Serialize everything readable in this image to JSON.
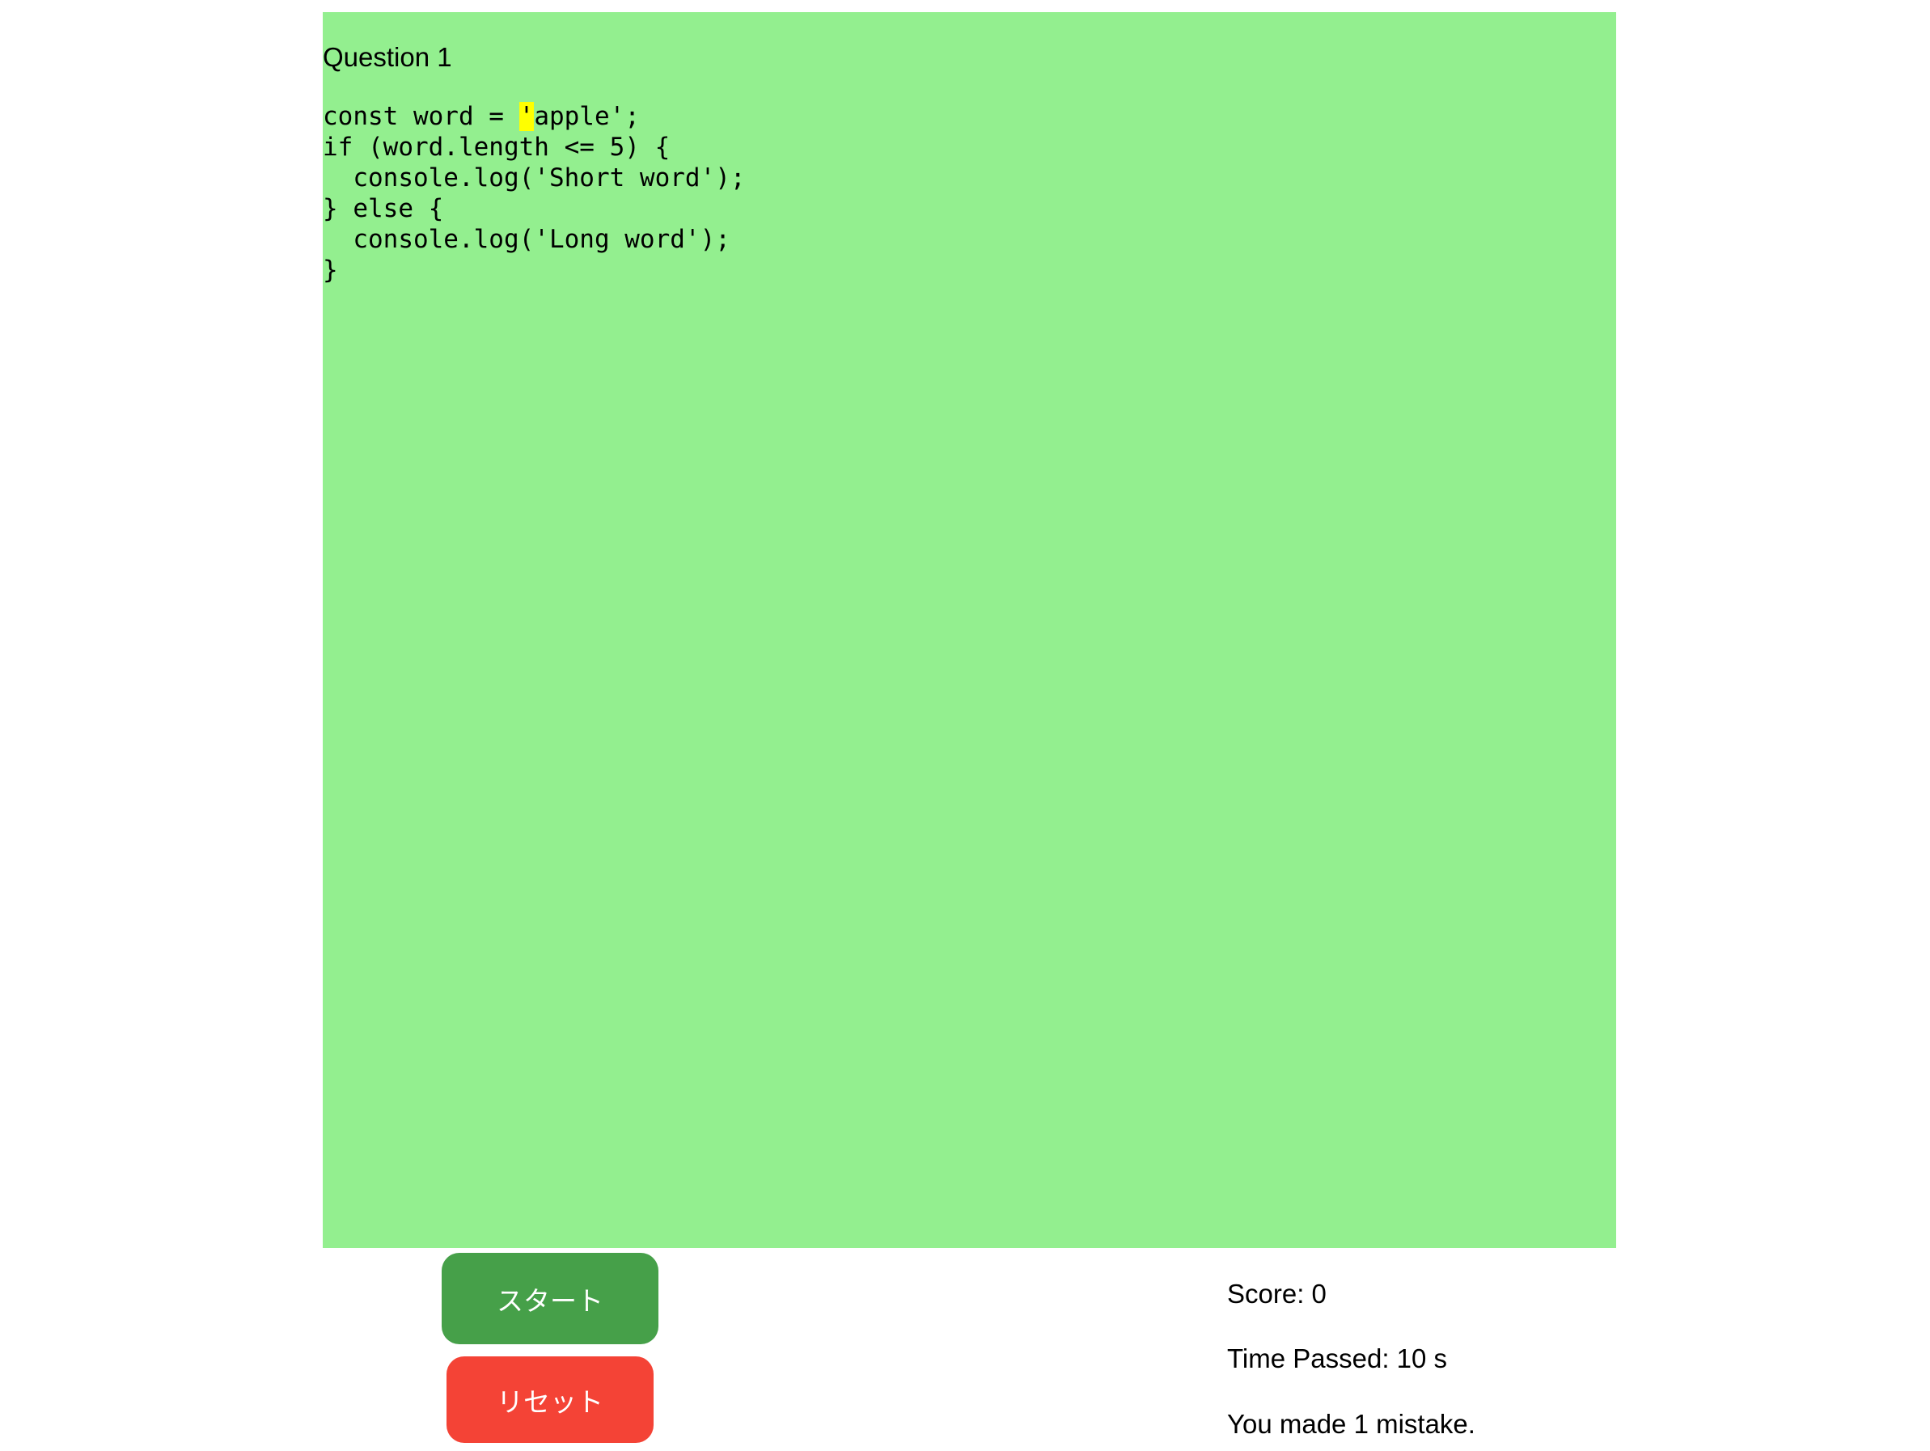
{
  "question": {
    "title": "Question 1"
  },
  "code": {
    "highlighted_char": "'",
    "first_line_rest": "apple';",
    "first_line_prefix": "const word = ",
    "rest_lines": "if (word.length <= 5) {\n  console.log('Short word');\n} else {\n  console.log('Long word');\n}"
  },
  "buttons": {
    "start": "スタート",
    "reset": "リセット"
  },
  "stats": {
    "score": "Score: 0",
    "time": "Time Passed: 10 s",
    "mistakes": "You made 1 mistake."
  },
  "colors": {
    "panel": "#93ef8f",
    "start": "#46a049",
    "reset": "#f44336",
    "highlight": "#ffff00"
  }
}
